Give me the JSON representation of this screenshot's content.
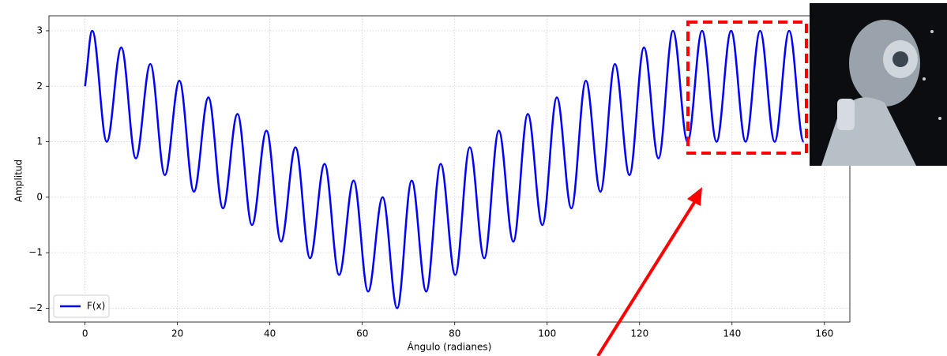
{
  "chart_data": {
    "type": "line",
    "x_label": "Ángulo (radianes)",
    "y_label": "Amplitud",
    "x": [
      0,
      1.57,
      4.71,
      7.85,
      11.0,
      14.14,
      17.28,
      20.42,
      23.56,
      26.7,
      29.85,
      32.99,
      36.13,
      39.27,
      42.41,
      45.55,
      48.69,
      51.84,
      54.98,
      58.12,
      61.26,
      64.4,
      67.54,
      70.69,
      73.83,
      76.97,
      80.11,
      83.25,
      86.39,
      89.54,
      92.68,
      95.82,
      98.96,
      102.1,
      105.24,
      108.38,
      111.53,
      114.67,
      117.81,
      120.95,
      124.09,
      127.23,
      130.38,
      133.52,
      136.66,
      139.8,
      142.94,
      146.08,
      149.23,
      152.37,
      155.51
    ],
    "series": [
      {
        "name": "F(x)",
        "color": "#0000ff",
        "values": [
          2,
          3,
          1,
          2.7,
          0.7,
          2.4,
          0.4,
          2.1,
          0.1,
          1.8,
          -0.2,
          1.5,
          -0.5,
          1.2,
          -0.8,
          0.9,
          -1.1,
          0.6,
          -1.4,
          0.3,
          -1.7,
          0,
          -2,
          0.3,
          -1.7,
          0.6,
          -1.4,
          0.9,
          -1.1,
          1.2,
          -0.8,
          1.5,
          -0.5,
          1.8,
          -0.2,
          2.1,
          0.1,
          2.4,
          0.4,
          2.7,
          0.7,
          3,
          1,
          3,
          1,
          3,
          1,
          3,
          1,
          3,
          1
        ]
      }
    ],
    "xlim": [
      -7.8,
      165.5
    ],
    "ylim": [
      -2.25,
      3.27
    ],
    "xticks": [
      0,
      20,
      40,
      60,
      80,
      100,
      120,
      140,
      160
    ],
    "yticks": [
      {
        "value": -2,
        "label": "−2"
      },
      {
        "value": -1,
        "label": "−1"
      },
      0,
      1,
      2,
      3
    ],
    "grid": true,
    "legend": "lower left"
  }
}
